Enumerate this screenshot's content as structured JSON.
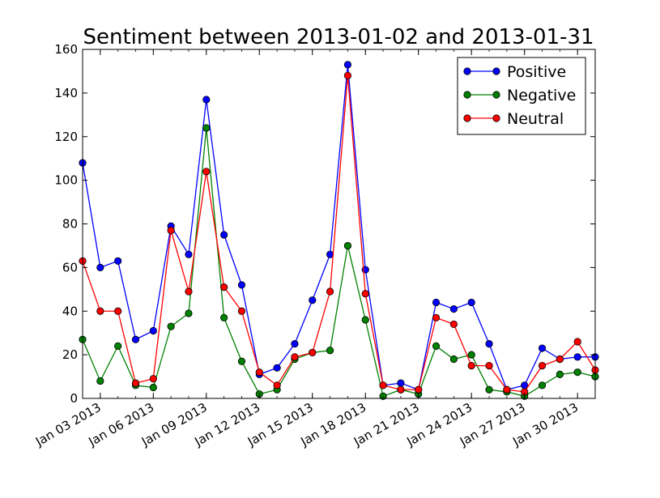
{
  "chart_data": {
    "type": "line",
    "title": "Sentiment between 2013-01-02 and 2013-01-31",
    "xlabel": "",
    "ylabel": "",
    "x": [
      "2013-01-02",
      "2013-01-03",
      "2013-01-04",
      "2013-01-05",
      "2013-01-06",
      "2013-01-07",
      "2013-01-08",
      "2013-01-09",
      "2013-01-10",
      "2013-01-11",
      "2013-01-12",
      "2013-01-13",
      "2013-01-14",
      "2013-01-15",
      "2013-01-16",
      "2013-01-17",
      "2013-01-18",
      "2013-01-19",
      "2013-01-20",
      "2013-01-21",
      "2013-01-22",
      "2013-01-23",
      "2013-01-24",
      "2013-01-25",
      "2013-01-26",
      "2013-01-27",
      "2013-01-28",
      "2013-01-29",
      "2013-01-30",
      "2013-01-31"
    ],
    "xlim": [
      "2013-01-02",
      "2013-01-31"
    ],
    "ylim": [
      0,
      160
    ],
    "x_tick_labels": [
      "Jan 03 2013",
      "Jan 06 2013",
      "Jan 09 2013",
      "Jan 12 2013",
      "Jan 15 2013",
      "Jan 18 2013",
      "Jan 21 2013",
      "Jan 24 2013",
      "Jan 27 2013",
      "Jan 30 2013"
    ],
    "x_tick_dates": [
      "2013-01-03",
      "2013-01-06",
      "2013-01-09",
      "2013-01-12",
      "2013-01-15",
      "2013-01-18",
      "2013-01-21",
      "2013-01-24",
      "2013-01-27",
      "2013-01-30"
    ],
    "y_ticks": [
      0,
      20,
      40,
      60,
      80,
      100,
      120,
      140,
      160
    ],
    "grid": false,
    "legend_position": "top-right",
    "series": [
      {
        "name": "Positive",
        "color": "#0000ff",
        "values": [
          108,
          60,
          63,
          27,
          31,
          79,
          66,
          137,
          75,
          52,
          11,
          14,
          25,
          45,
          66,
          153,
          59,
          6,
          7,
          4,
          44,
          41,
          44,
          25,
          4,
          6,
          23,
          18,
          19,
          19
        ]
      },
      {
        "name": "Negative",
        "color": "#008000",
        "values": [
          27,
          8,
          24,
          6,
          5,
          33,
          39,
          124,
          37,
          17,
          2,
          4,
          18,
          21,
          22,
          70,
          36,
          1,
          4,
          2,
          24,
          18,
          20,
          4,
          3,
          1,
          6,
          11,
          12,
          10
        ]
      },
      {
        "name": "Neutral",
        "color": "#ff0000",
        "values": [
          63,
          40,
          40,
          7,
          9,
          77,
          49,
          104,
          51,
          40,
          12,
          6,
          19,
          21,
          49,
          148,
          48,
          6,
          4,
          4,
          37,
          34,
          15,
          15,
          4,
          3,
          15,
          18,
          26,
          13
        ]
      }
    ]
  }
}
